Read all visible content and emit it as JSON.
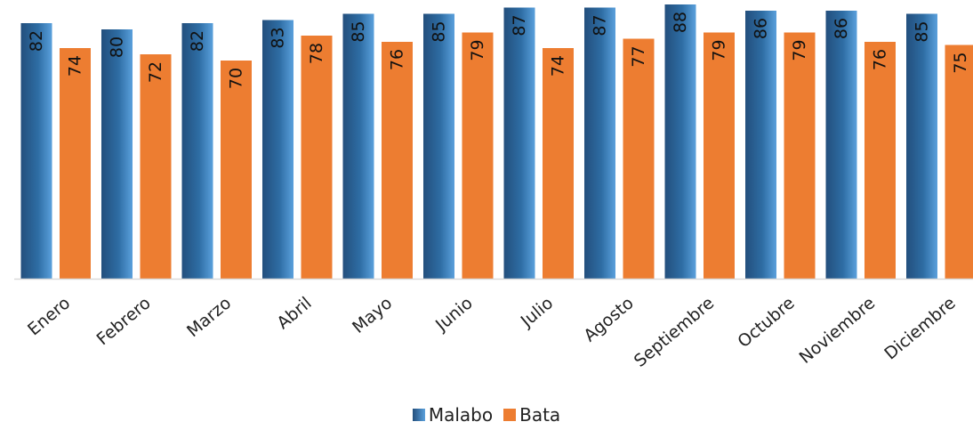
{
  "chart_data": {
    "type": "bar",
    "categories": [
      "Enero",
      "Febrero",
      "Marzo",
      "Abril",
      "Mayo",
      "Junio",
      "Julio",
      "Agosto",
      "Septiembre",
      "Octubre",
      "Noviembre",
      "Diciembre"
    ],
    "series": [
      {
        "name": "Malabo",
        "values": [
          82,
          80,
          82,
          83,
          85,
          85,
          87,
          87,
          88,
          86,
          86,
          85
        ],
        "color": "#2e6da4",
        "color_light": "#5aa0dc",
        "color_dark": "#234f7d"
      },
      {
        "name": "Bata",
        "values": [
          74,
          72,
          70,
          78,
          76,
          79,
          74,
          77,
          79,
          79,
          76,
          75
        ],
        "color": "#ed7d31"
      }
    ],
    "ylim": [
      0,
      88
    ],
    "data_labels": "inside-end-rotated",
    "legend_position": "bottom",
    "axis_color": "#d9d9d9"
  },
  "legend": {
    "malabo": "Malabo",
    "bata": "Bata"
  }
}
